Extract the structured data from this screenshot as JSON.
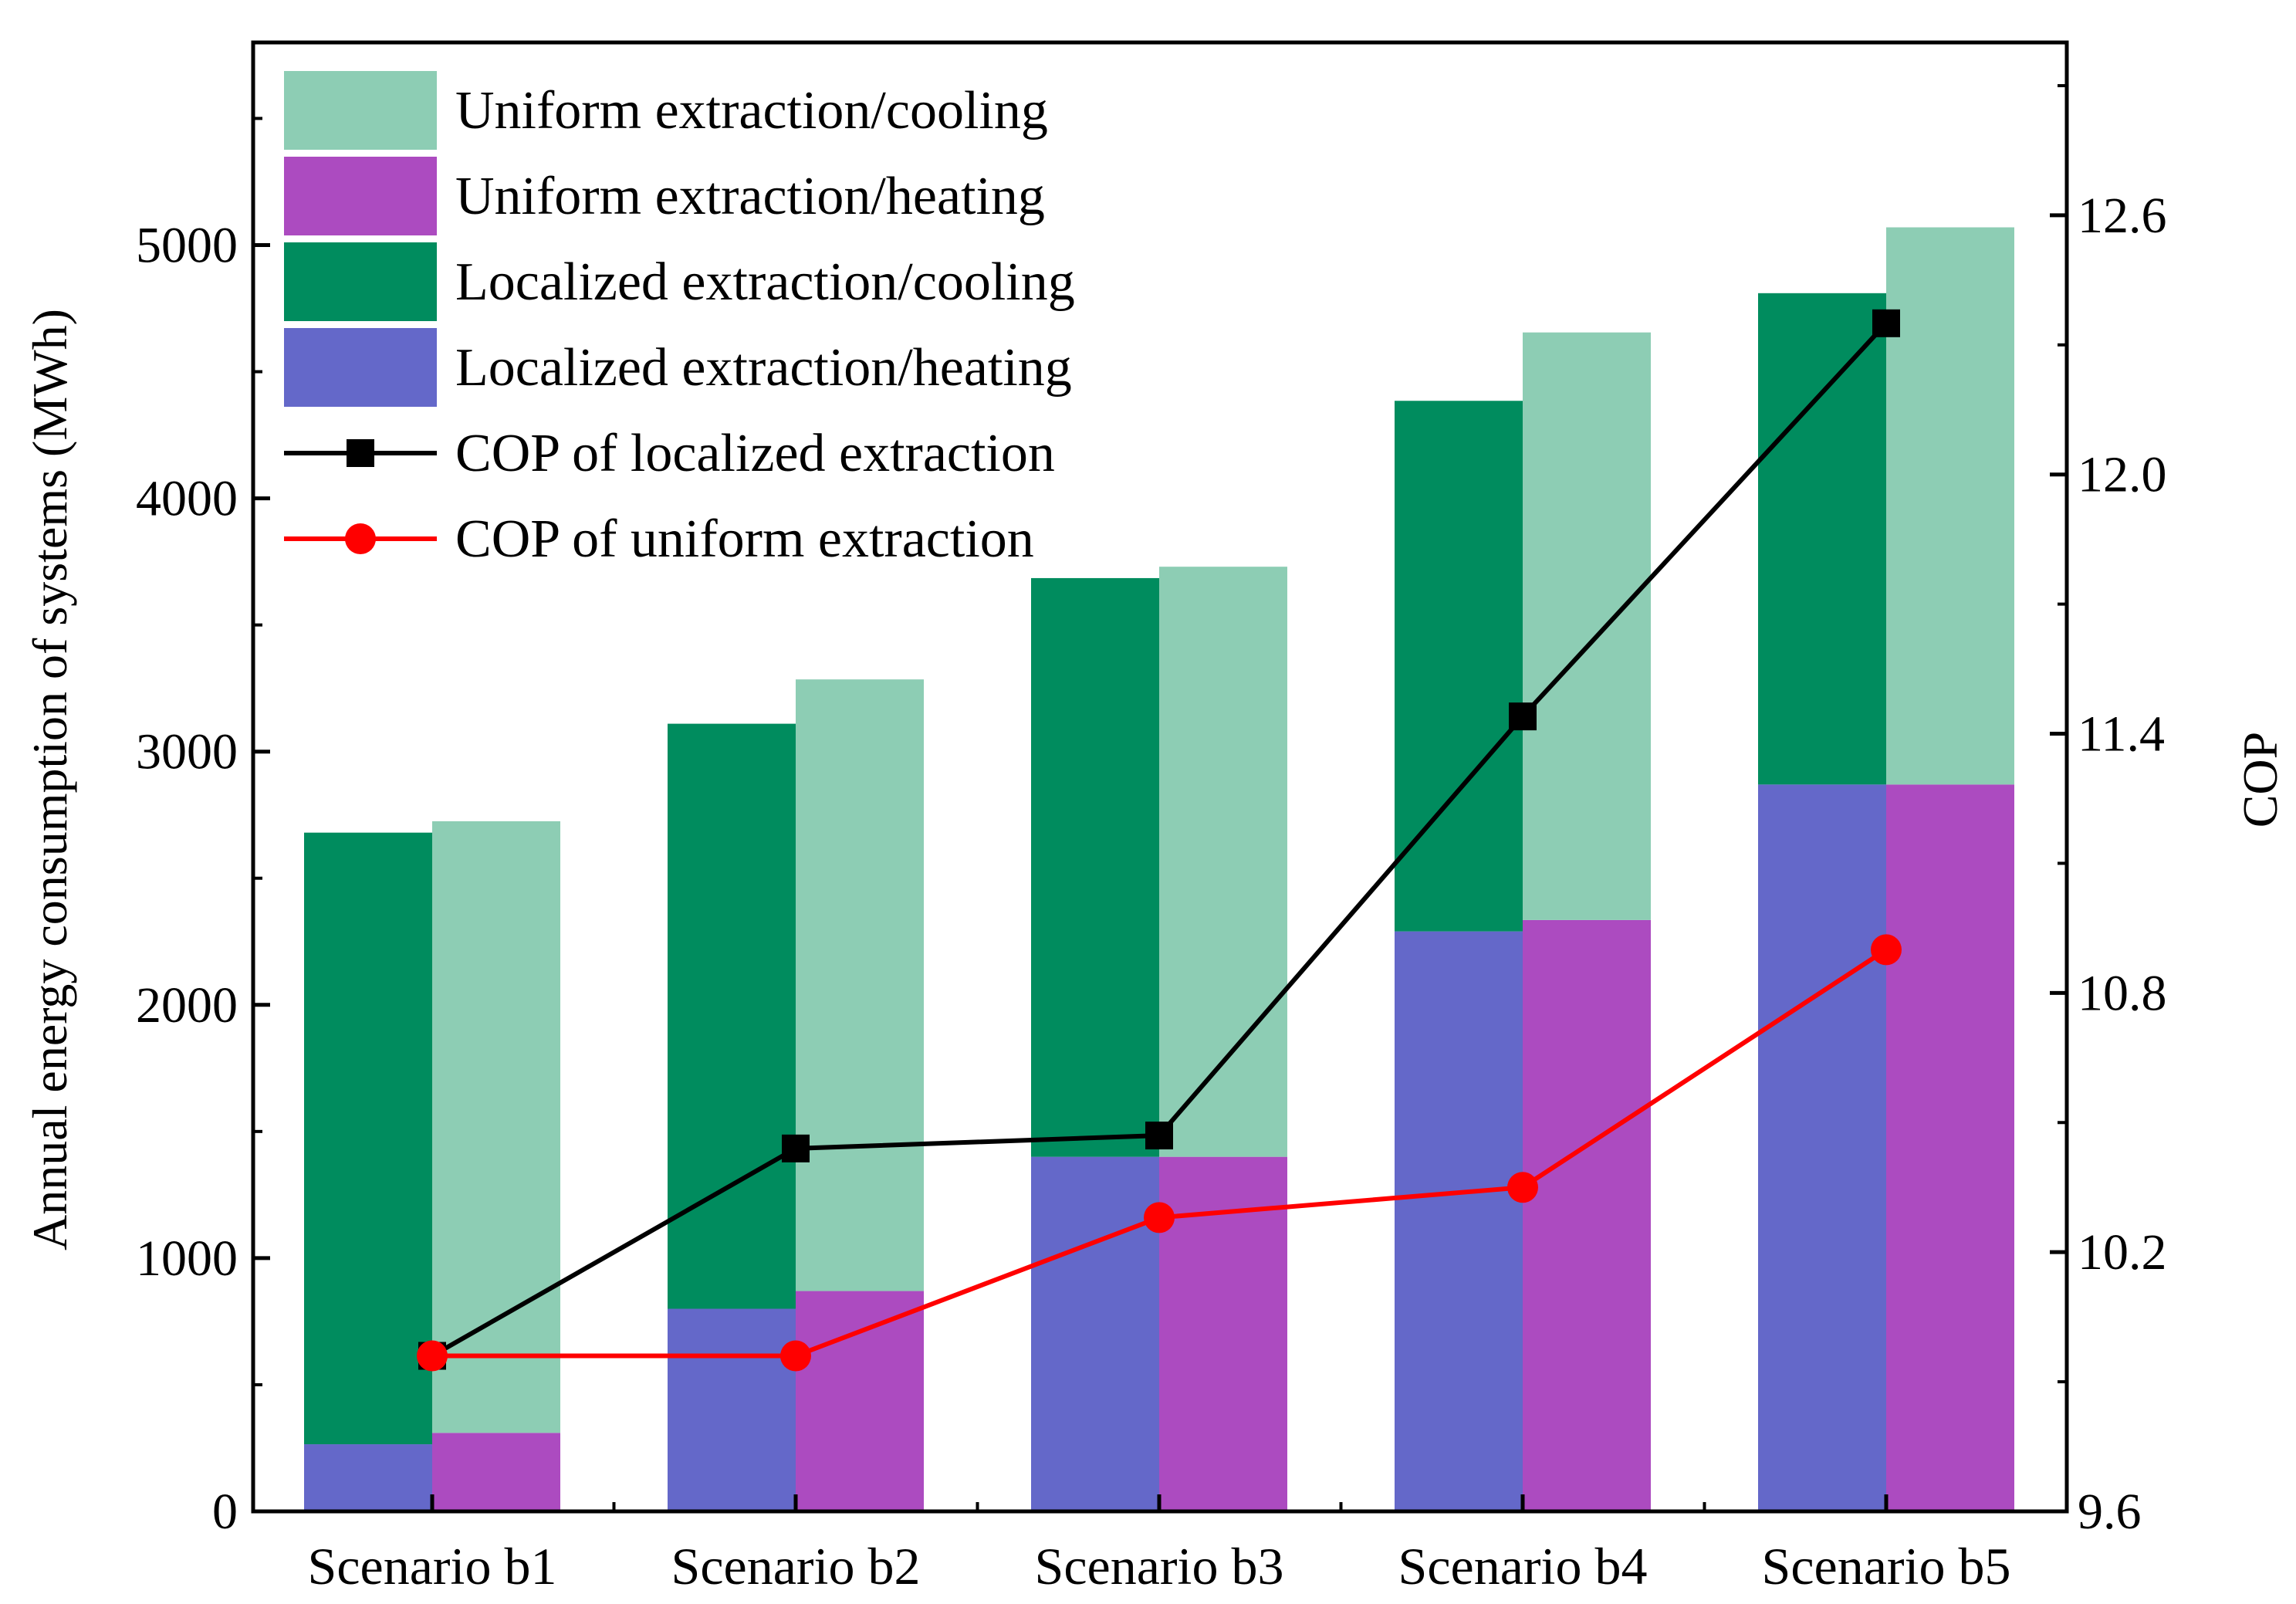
{
  "chart_data": {
    "type": "bar",
    "title": "",
    "categories": [
      "Scenario b1",
      "Scenario b2",
      "Scenario b3",
      "Scenario b4",
      "Scenario b5"
    ],
    "ylabel": "Annual energy consumption of systems (MWh)",
    "y2label": "COP",
    "ylim": [
      0,
      5800
    ],
    "y2lim": [
      9.6,
      13.0
    ],
    "yticks": [
      0,
      1000,
      2000,
      3000,
      4000,
      5000
    ],
    "y2ticks": [
      9.6,
      10.2,
      10.8,
      11.4,
      12.0,
      12.6
    ],
    "ytick_labels": [
      "0",
      "1000",
      "2000",
      "3000",
      "4000",
      "5000"
    ],
    "y2tick_labels": [
      "9.6",
      "10.2",
      "10.8",
      "11.4",
      "12.0",
      "12.6"
    ],
    "legend_position": "top-left",
    "stacks": [
      {
        "group": "Localized extraction",
        "segments": [
          {
            "name": "Localized extraction/heating",
            "color": "#6468C9",
            "values": [
              265,
              800,
              1400,
              2290,
              2870
            ]
          },
          {
            "name": "Localized extraction/cooling",
            "color": "#008C5E",
            "values": [
              2415,
              2310,
              2285,
              2095,
              1940
            ]
          }
        ]
      },
      {
        "group": "Uniform extraction",
        "segments": [
          {
            "name": "Uniform extraction/heating",
            "color": "#AC4BC0",
            "values": [
              310,
              870,
              1400,
              2335,
              2870
            ]
          },
          {
            "name": "Uniform extraction/cooling",
            "color": "#8DCDB4",
            "values": [
              2415,
              2415,
              2330,
              2320,
              2200
            ]
          }
        ]
      }
    ],
    "lines": [
      {
        "name": "COP of localized extraction",
        "color": "#000000",
        "marker": "square",
        "axis": "right",
        "values": [
          9.96,
          10.44,
          10.47,
          11.44,
          12.35
        ]
      },
      {
        "name": "COP of uniform extraction",
        "color": "#FF0000",
        "marker": "circle",
        "axis": "right",
        "values": [
          9.96,
          9.96,
          10.28,
          10.35,
          10.9
        ]
      }
    ],
    "legend": [
      {
        "label": "Uniform extraction/cooling",
        "kind": "patch",
        "color": "#8DCDB4"
      },
      {
        "label": "Uniform extraction/heating",
        "kind": "patch",
        "color": "#AC4BC0"
      },
      {
        "label": "Localized extraction/cooling",
        "kind": "patch",
        "color": "#008C5E"
      },
      {
        "label": "Localized extraction/heating",
        "kind": "patch",
        "color": "#6468C9"
      },
      {
        "label": "COP of localized extraction",
        "kind": "line",
        "color": "#000000",
        "marker": "square"
      },
      {
        "label": "COP of uniform extraction",
        "kind": "line",
        "color": "#FF0000",
        "marker": "circle"
      }
    ]
  }
}
